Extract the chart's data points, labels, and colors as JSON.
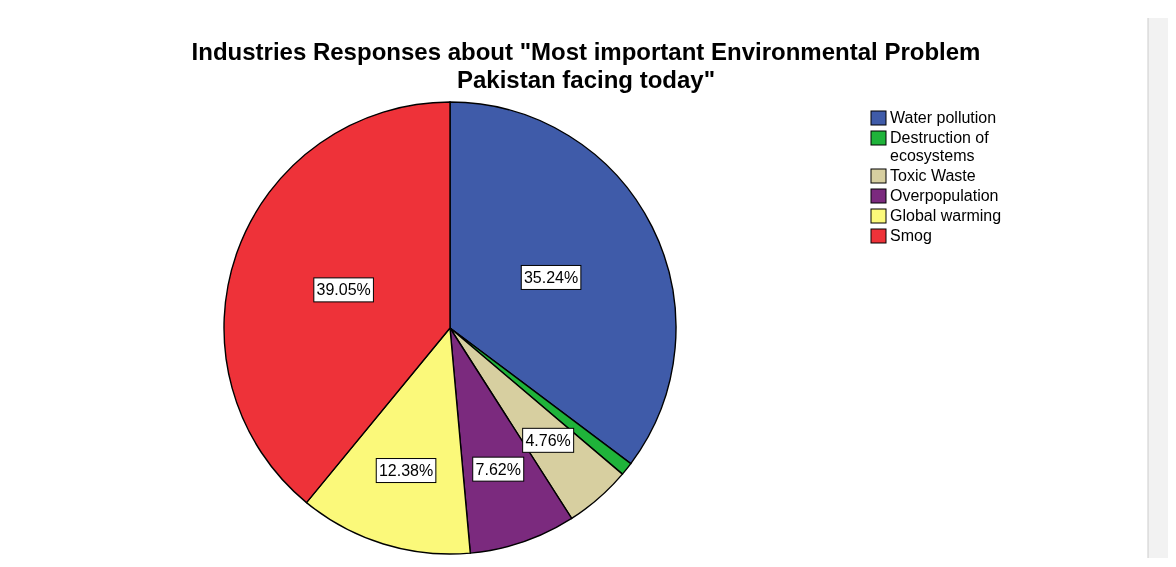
{
  "chart_data": {
    "type": "pie",
    "title": "Industries Responses about \"Most important Environmental Problem\nPakistan facing today\"",
    "categories": [
      "Water pollution",
      "Destruction of ecosystems",
      "Toxic Waste",
      "Overpopulation",
      "Global warming",
      "Smog"
    ],
    "values": [
      35.24,
      0.95,
      4.76,
      7.62,
      12.38,
      39.05
    ],
    "colors": [
      "#3f5ba9",
      "#1fb33a",
      "#d7cfa0",
      "#7b2a7e",
      "#fbf97a",
      "#ee3239"
    ],
    "value_labels": [
      "35.24%",
      null,
      "4.76%",
      "7.62%",
      "12.38%",
      "39.05%"
    ],
    "legend": "right"
  }
}
